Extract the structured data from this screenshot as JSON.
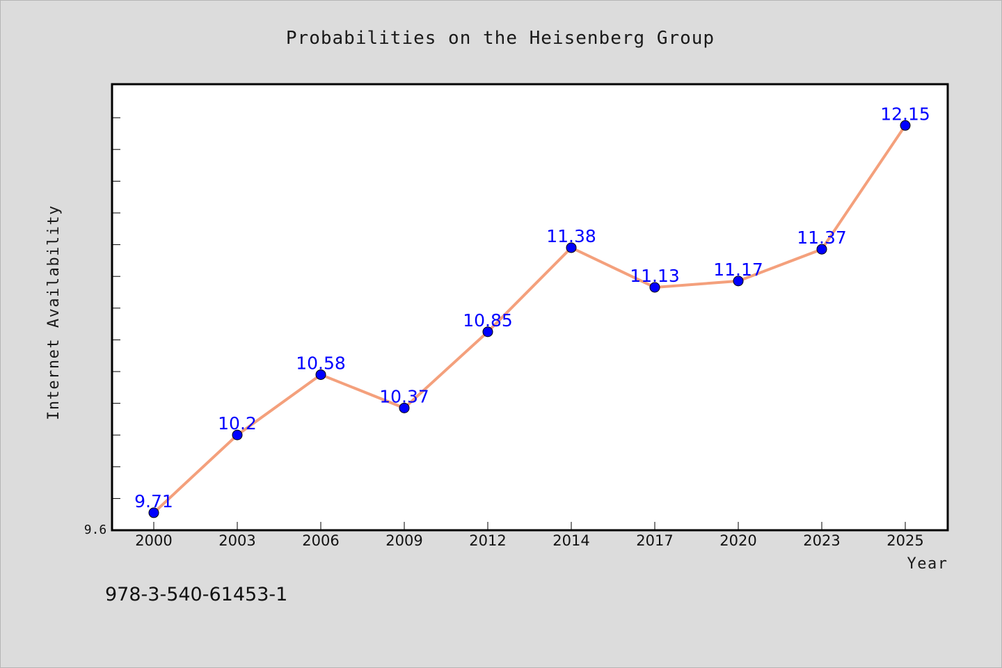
{
  "chart_data": {
    "type": "line",
    "title": "Probabilities on the Heisenberg Group",
    "xlabel": "Year",
    "ylabel": "Internet Availability",
    "x": [
      "2000",
      "2003",
      "2006",
      "2009",
      "2012",
      "2014",
      "2017",
      "2020",
      "2023",
      "2025"
    ],
    "values": [
      9.71,
      10.2,
      10.58,
      10.37,
      10.85,
      11.38,
      11.13,
      11.17,
      11.37,
      12.15
    ],
    "ylim": [
      9.6,
      12.41
    ],
    "y_tick_labels": [
      "9.6"
    ],
    "grid": false,
    "legend": "none",
    "line_color": "#f4a07c",
    "marker_color": "#0000ff",
    "label_color": "#0000ff",
    "background_color": "#dcdcdc",
    "plot_background": "#ffffff"
  },
  "footer": {
    "isbn": "978-3-540-61453-1"
  }
}
